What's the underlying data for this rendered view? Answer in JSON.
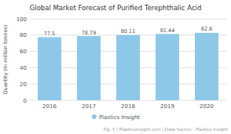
{
  "chart_data": {
    "type": "bar",
    "title": "Global Market Forecast of Purified Terephthalic Acid",
    "categories": [
      "2016",
      "2017",
      "2018",
      "2019",
      "2020"
    ],
    "series": [
      {
        "name": "Plastics Insight",
        "color": "#8ec8e8",
        "values": [
          77.5,
          78.79,
          80.11,
          81.44,
          82.8
        ]
      }
    ],
    "ylabel": "Quantity (In million tonnes)",
    "ylim": [
      0,
      100
    ],
    "yticks": [
      0,
      20,
      40,
      60,
      80,
      100
    ],
    "grid": true,
    "data_labels": true,
    "legend": "bottom",
    "annotations": [
      "Fig. 5 | Plasticsinsight.com | Data Source : Plastics Insight"
    ]
  }
}
